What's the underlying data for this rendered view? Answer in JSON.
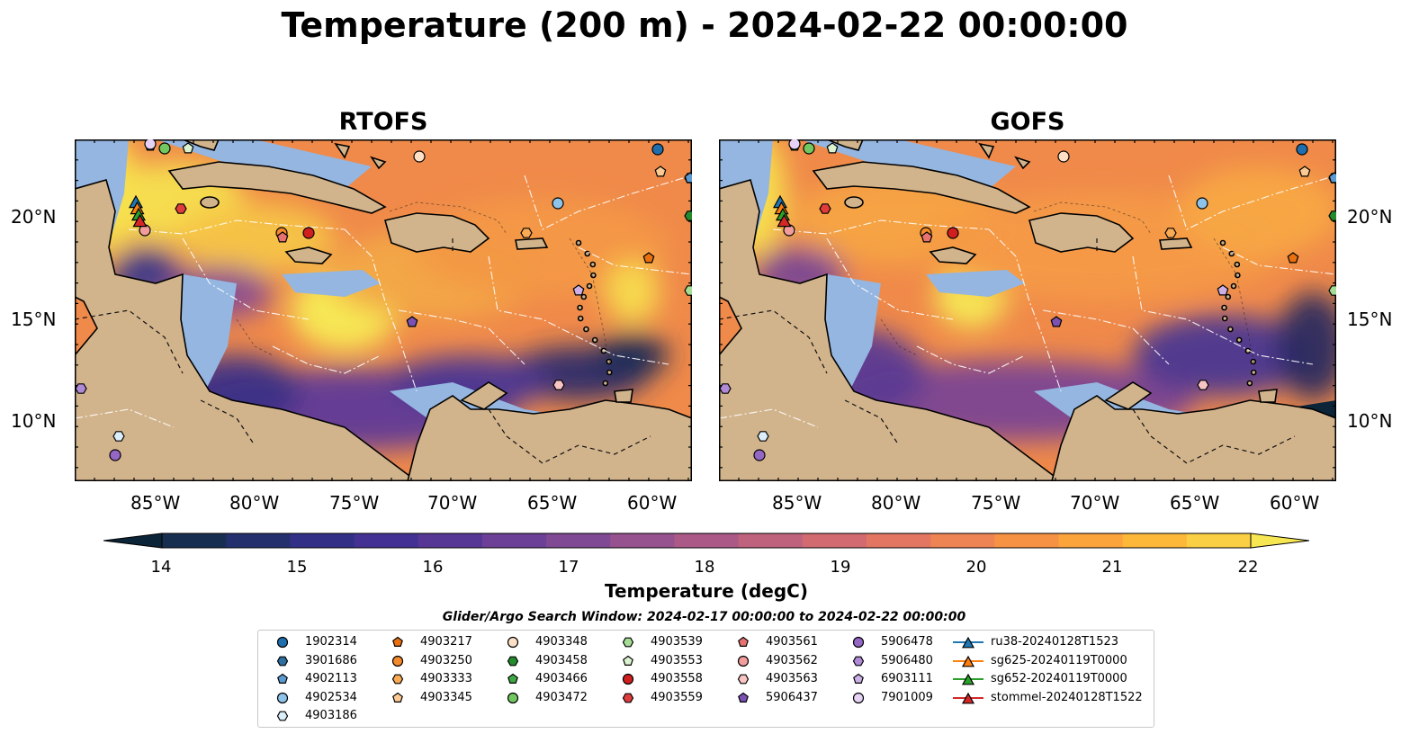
{
  "title": "Temperature (200 m) - 2024-02-22 00:00:00",
  "panels": [
    {
      "name": "RTOFS"
    },
    {
      "name": "GOFS"
    }
  ],
  "axes": {
    "lon_ticks": [
      "85°W",
      "80°W",
      "75°W",
      "70°W",
      "65°W",
      "60°W"
    ],
    "lat_ticks": [
      "20°N",
      "15°N",
      "10°N"
    ]
  },
  "colorbar": {
    "label": "Temperature (degC)",
    "ticks": [
      "14",
      "15",
      "16",
      "17",
      "18",
      "19",
      "20",
      "21",
      "22"
    ],
    "colors": [
      "#0b2438",
      "#172e51",
      "#242f6e",
      "#312f86",
      "#433293",
      "#563795",
      "#6b4096",
      "#7f4993",
      "#95528e",
      "#ab5a87",
      "#bf627d",
      "#d26b71",
      "#e27663",
      "#ee8353",
      "#f69244",
      "#fba43b",
      "#fdb83a",
      "#fbcf44",
      "#f6e651"
    ]
  },
  "legend": {
    "title": "Glider/Argo Search Window: 2024-02-17 00:00:00 to 2024-02-22 00:00:00",
    "items": [
      {
        "label": "1902314",
        "marker": "circle",
        "color": "#1f6fae"
      },
      {
        "label": "3901686",
        "marker": "hexagon",
        "color": "#2c6fa0"
      },
      {
        "label": "4902113",
        "marker": "pentagon",
        "color": "#5b9bd1"
      },
      {
        "label": "4902534",
        "marker": "circle",
        "color": "#8ec4ea"
      },
      {
        "label": "4903186",
        "marker": "hexagon",
        "color": "#dbeefa"
      },
      {
        "label": "4903217",
        "marker": "pentagon",
        "color": "#e8700f"
      },
      {
        "label": "4903250",
        "marker": "circle",
        "color": "#f38a2b"
      },
      {
        "label": "4903333",
        "marker": "hexagon",
        "color": "#f8aa55"
      },
      {
        "label": "4903345",
        "marker": "pentagon",
        "color": "#fcca93"
      },
      {
        "label": "4903348",
        "marker": "circle",
        "color": "#fde0c6"
      },
      {
        "label": "4903458",
        "marker": "hexagon",
        "color": "#238b2e"
      },
      {
        "label": "4903466",
        "marker": "pentagon",
        "color": "#3ea844"
      },
      {
        "label": "4903472",
        "marker": "circle",
        "color": "#72c760"
      },
      {
        "label": "4903539",
        "marker": "hexagon",
        "color": "#a6dd95"
      },
      {
        "label": "4903553",
        "marker": "pentagon",
        "color": "#dcf3cf"
      },
      {
        "label": "4903558",
        "marker": "circle",
        "color": "#d11f1f"
      },
      {
        "label": "4903559",
        "marker": "hexagon",
        "color": "#e03c3c"
      },
      {
        "label": "4903561",
        "marker": "pentagon",
        "color": "#e87272"
      },
      {
        "label": "4903562",
        "marker": "circle",
        "color": "#f29c9c"
      },
      {
        "label": "4903563",
        "marker": "hexagon",
        "color": "#f8c4c4"
      },
      {
        "label": "5906437",
        "marker": "pentagon",
        "color": "#7b52b3"
      },
      {
        "label": "5906478",
        "marker": "circle",
        "color": "#9467c4"
      },
      {
        "label": "5906480",
        "marker": "hexagon",
        "color": "#b08ad6"
      },
      {
        "label": "6903111",
        "marker": "pentagon",
        "color": "#cdb1e6"
      },
      {
        "label": "7901009",
        "marker": "circle",
        "color": "#e6d2f5"
      },
      {
        "label": "ru38-20240128T1523",
        "marker": "triangle-line",
        "color": "#1f77b4"
      },
      {
        "label": "sg625-20240119T0000",
        "marker": "triangle-line",
        "color": "#ff7f0e"
      },
      {
        "label": "sg652-20240119T0000",
        "marker": "triangle-line",
        "color": "#2ca02c"
      },
      {
        "label": "stommel-20240128T1522",
        "marker": "triangle-line",
        "color": "#d62728"
      }
    ]
  },
  "map_colors": {
    "land": "#d2b48c",
    "shelf": "#94b6e0",
    "coastline": "#000000",
    "eez_lines": "#ffffff"
  }
}
